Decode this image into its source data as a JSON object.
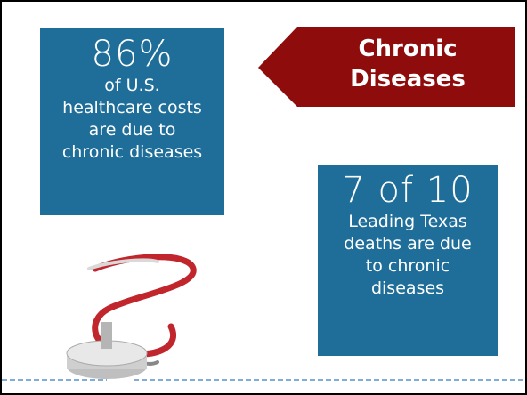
{
  "stat_left": {
    "headline": "86%",
    "lines": [
      "of U.S.",
      "healthcare costs",
      "are due to",
      "chronic diseases"
    ]
  },
  "banner": {
    "lines": [
      "Chronic",
      "Diseases"
    ]
  },
  "stat_right": {
    "headline": "7 of 10",
    "lines": [
      "Leading Texas",
      "deaths are due",
      "to chronic",
      "diseases"
    ]
  }
}
